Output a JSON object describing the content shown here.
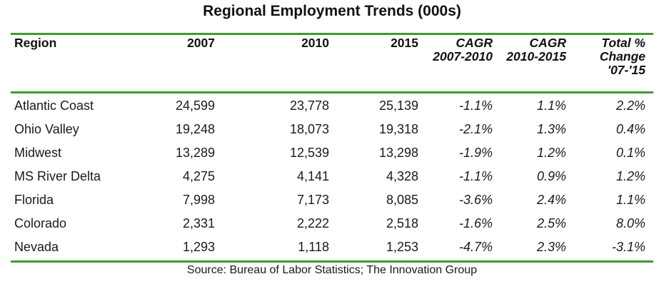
{
  "chart_data": {
    "type": "table",
    "title": "Regional Employment Trends (000s)",
    "columns": [
      {
        "label_lines": [
          "Region"
        ]
      },
      {
        "label_lines": [
          "2007"
        ]
      },
      {
        "label_lines": [
          "2010"
        ]
      },
      {
        "label_lines": [
          "2015"
        ]
      },
      {
        "label_lines": [
          "CAGR",
          "2007-2010"
        ]
      },
      {
        "label_lines": [
          "CAGR",
          "2010-2015"
        ]
      },
      {
        "label_lines": [
          "Total %",
          "Change",
          "'07-'15"
        ]
      }
    ],
    "rows": [
      [
        "Atlantic Coast",
        "24,599",
        "23,778",
        "25,139",
        "-1.1%",
        "1.1%",
        "2.2%"
      ],
      [
        "Ohio Valley",
        "19,248",
        "18,073",
        "19,318",
        "-2.1%",
        "1.3%",
        "0.4%"
      ],
      [
        "Midwest",
        "13,289",
        "12,539",
        "13,298",
        "-1.9%",
        "1.2%",
        "0.1%"
      ],
      [
        "MS River Delta",
        "4,275",
        "4,141",
        "4,328",
        "-1.1%",
        "0.9%",
        "1.2%"
      ],
      [
        "Florida",
        "7,998",
        "7,173",
        "8,085",
        "-3.6%",
        "2.4%",
        "1.1%"
      ],
      [
        "Colorado",
        "2,331",
        "2,222",
        "2,518",
        "-1.6%",
        "2.5%",
        "8.0%"
      ],
      [
        "Nevada",
        "1,293",
        "1,118",
        "1,253",
        "-4.7%",
        "2.3%",
        "-3.1%"
      ]
    ],
    "source": "Source: Bureau of Labor Statistics; The Innovation Group",
    "rule_color": "#3f9b2f"
  }
}
